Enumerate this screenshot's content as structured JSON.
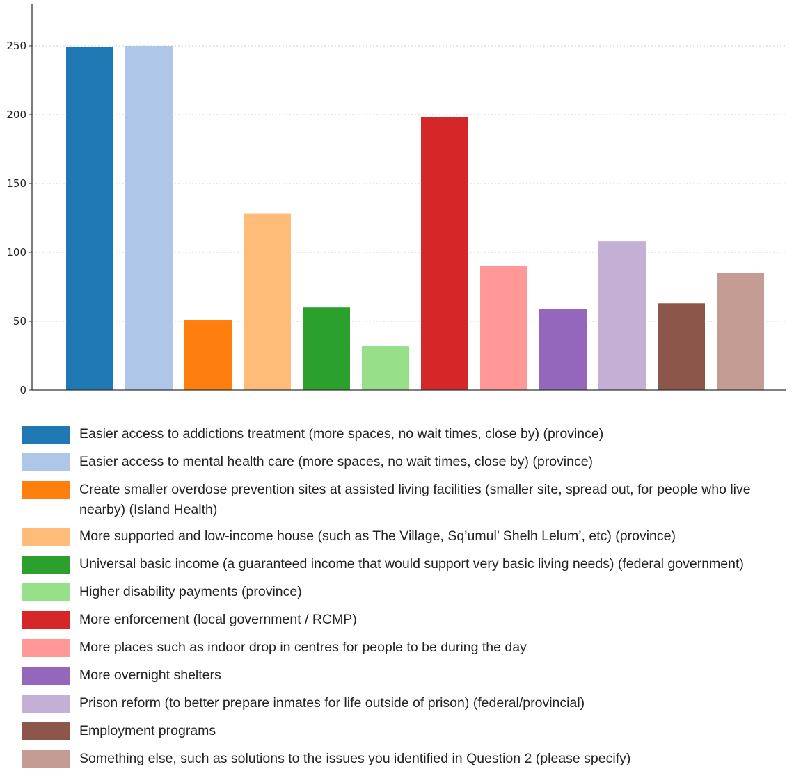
{
  "chart_data": {
    "type": "bar",
    "title": "",
    "xlabel": "",
    "ylabel": "",
    "ylim": [
      0,
      270
    ],
    "yticks": [
      0,
      50,
      100,
      150,
      200,
      250
    ],
    "grid": "horizontal dotted",
    "legend_position": "bottom",
    "categories": [
      "Easier access to addictions treatment (more spaces, no wait times, close by) (province)",
      "Easier access to mental health care (more spaces, no wait times, close by) (province)",
      "Create smaller overdose prevention sites at assisted living facilities (smaller site, spread out, for people who live nearby) (Island Health)",
      "More supported and low-income house (such as The Village, Sq’umul’ Shelh Lelum’, etc) (province)",
      "Universal basic income (a guaranteed income that would support very basic living needs) (federal government)",
      "Higher disability payments (province)",
      "More enforcement (local government / RCMP)",
      "More places such as indoor drop in centres for people to be during the day",
      "More overnight shelters",
      "Prison reform (to better prepare inmates for life outside of prison) (federal/provincial)",
      "Employment programs",
      "Something else, such as solutions to the issues you identified in Question 2 (please specify)"
    ],
    "values": [
      249,
      250,
      51,
      128,
      60,
      32,
      198,
      90,
      59,
      108,
      63,
      85
    ],
    "colors": [
      "#1f77b4",
      "#aec7e8",
      "#ff7f0e",
      "#ffbb78",
      "#2ca02c",
      "#98df8a",
      "#d62728",
      "#ff9896",
      "#9467bd",
      "#c5b0d5",
      "#8c564b",
      "#c49c94"
    ]
  }
}
